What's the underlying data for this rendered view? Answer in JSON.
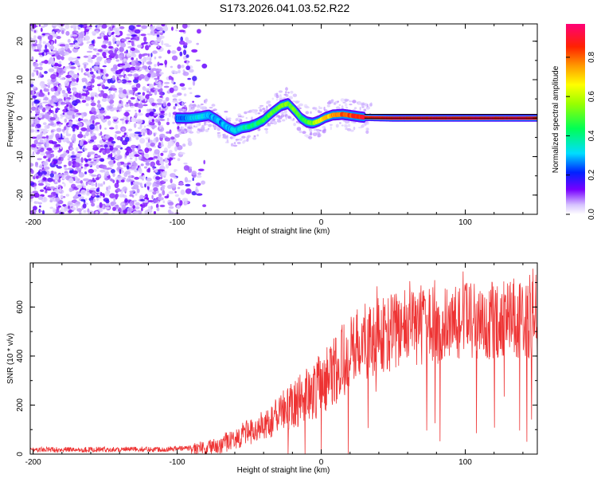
{
  "figure_title": "S173.2026.041.03.52.R22",
  "chart_data": [
    {
      "type": "heatmap",
      "title": "S173.2026.041.03.52.R22",
      "xlabel": "Height of straight line (km)",
      "ylabel": "Frequency (Hz)",
      "xlim": [
        -202,
        150
      ],
      "ylim": [
        -25,
        24.5
      ],
      "x_ticks": [
        -200,
        -100,
        0,
        100
      ],
      "x_tick_labels": [
        "-200",
        "-100",
        "0",
        "100"
      ],
      "y_ticks": [
        -20,
        -10,
        0,
        10,
        20
      ],
      "y_tick_labels": [
        "-20",
        "-10",
        "0",
        "10",
        "20"
      ],
      "noise_region_x": [
        -202,
        -80
      ],
      "signal_ridge": {
        "x": [
          -100,
          -92,
          -85,
          -78,
          -72,
          -66,
          -60,
          -55,
          -50,
          -45,
          -40,
          -34,
          -28,
          -23,
          -18,
          -14,
          -10,
          -6,
          -2,
          3,
          8,
          15,
          22,
          30,
          50,
          80,
          110,
          150
        ],
        "freq": [
          0,
          0,
          0.3,
          0.8,
          -0.5,
          -2.2,
          -3.3,
          -2.5,
          -2.2,
          -1.5,
          -0.5,
          1.5,
          3.2,
          3.8,
          1.8,
          0,
          -1,
          -1.3,
          -0.8,
          0.2,
          0.8,
          1,
          0.6,
          0.2,
          0,
          0,
          0,
          0
        ],
        "amplitude": [
          0.25,
          0.3,
          0.35,
          0.3,
          0.28,
          0.3,
          0.32,
          0.35,
          0.4,
          0.42,
          0.45,
          0.5,
          0.55,
          0.55,
          0.55,
          0.45,
          0.5,
          0.55,
          0.65,
          0.72,
          0.78,
          0.82,
          0.88,
          0.9,
          0.92,
          0.93,
          0.93,
          0.93
        ]
      },
      "reference_line_freq": [
        0,
        1
      ],
      "colorbar": {
        "label": "Normalized spectral amplitude",
        "range": [
          0,
          0.97
        ],
        "ticks": [
          0.0,
          0.2,
          0.4,
          0.6,
          0.8
        ],
        "tick_labels": [
          "0.0",
          "0.2",
          "0.4",
          "0.6",
          "0.8"
        ]
      }
    },
    {
      "type": "line",
      "xlabel": "Height of straight line (km)",
      "ylabel": "SNR (10 * v/v)",
      "xlim": [
        -202,
        150
      ],
      "ylim": [
        0,
        780
      ],
      "color": "#ee3333",
      "x_ticks": [
        -200,
        -100,
        0,
        100
      ],
      "x_tick_labels": [
        "-200",
        "-100",
        "0",
        "100"
      ],
      "y_ticks": [
        0,
        200,
        400,
        600
      ],
      "y_tick_labels": [
        "0",
        "200",
        "400",
        "600"
      ],
      "trend": {
        "x": [
          -202,
          -110,
          -90,
          -75,
          -65,
          -50,
          -40,
          -25,
          -10,
          0,
          10,
          20,
          30,
          45,
          60,
          80,
          100,
          120,
          150
        ],
        "y": [
          18,
          20,
          25,
          35,
          60,
          100,
          140,
          200,
          260,
          310,
          390,
          450,
          490,
          520,
          545,
          560,
          570,
          580,
          580
        ]
      }
    }
  ]
}
